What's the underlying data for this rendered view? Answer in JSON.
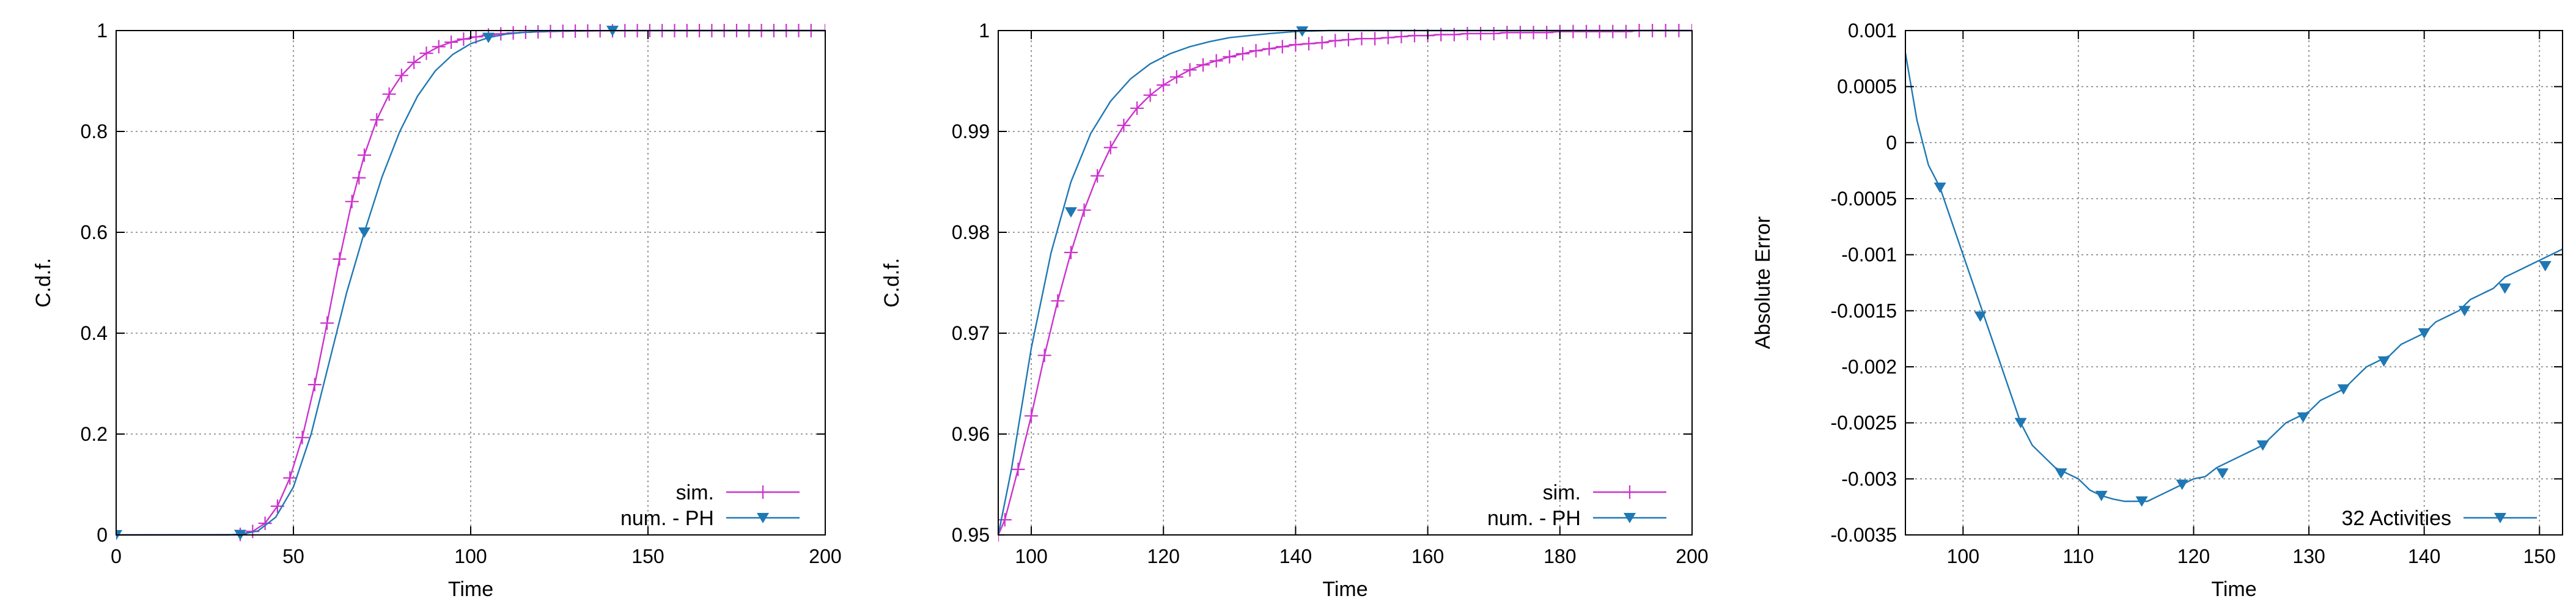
{
  "chart_data": [
    {
      "type": "line",
      "title": "",
      "xlabel": "Time",
      "ylabel": "C.d.f.",
      "xlim": [
        0,
        200
      ],
      "ylim": [
        0,
        1
      ],
      "x_ticks": [
        0,
        50,
        100,
        150,
        200
      ],
      "y_ticks": [
        0,
        0.2,
        0.4,
        0.6,
        0.8,
        1
      ],
      "x_tick_labels": [
        "0",
        "50",
        "100",
        "150",
        "200"
      ],
      "y_tick_labels": [
        "0",
        "0.2",
        "0.4",
        "0.6",
        "0.8",
        "1"
      ],
      "grid": true,
      "legend_position": "bottom-right",
      "series": [
        {
          "name": "sim.",
          "color": "#cc33cc",
          "marker": "plus",
          "x": [
            0,
            3.5,
            7,
            10.5,
            14,
            17.5,
            21,
            24.5,
            28,
            31.5,
            35,
            38.5,
            42,
            45.5,
            49,
            52.5,
            56,
            59.5,
            63,
            66.5,
            70,
            73.5,
            77,
            80.5,
            84,
            87.5,
            91,
            94.5,
            98,
            101.5,
            105,
            108.5,
            112,
            115.5,
            119,
            122.5,
            126,
            129.5,
            133,
            136.5,
            140,
            143.5,
            147,
            150.5,
            154,
            157.5,
            161,
            164.5,
            168,
            171.5,
            175,
            178.5,
            182,
            185.5,
            189,
            192.5,
            196,
            200
          ],
          "y": [
            0,
            0,
            0,
            0,
            0,
            0,
            0,
            0,
            0,
            0,
            0.001,
            0.007,
            0.023,
            0.057,
            0.113,
            0.193,
            0.298,
            0.42,
            0.547,
            0.661,
            0.753,
            0.823,
            0.874,
            0.911,
            0.937,
            0.955,
            0.968,
            0.977,
            0.983,
            0.9875,
            0.991,
            0.9935,
            0.9953,
            0.9966,
            0.9975,
            0.9982,
            0.9987,
            0.999,
            0.9993,
            0.9995,
            0.9996,
            0.9997,
            0.9998,
            0.9998,
            0.9999,
            0.9999,
            0.9999,
            1,
            1,
            1,
            1,
            1,
            1,
            1,
            1,
            1,
            1,
            1
          ],
          "marker_x": [
            35,
            38.5,
            42,
            45.5,
            49,
            52.5,
            56,
            59.5,
            63,
            66.5,
            68.5,
            70,
            73.5,
            77,
            80.5,
            84,
            87.5,
            91,
            94.5,
            98,
            101.5,
            105,
            108.5,
            112,
            115.5,
            119,
            122.5,
            126,
            129.5,
            133,
            136.5,
            140,
            143.5,
            147,
            150.5,
            154,
            157.5,
            161,
            164.5,
            168,
            171.5,
            175,
            178.5,
            182,
            185.5,
            189,
            192.5,
            196,
            200
          ],
          "marker_y": [
            0.001,
            0.007,
            0.023,
            0.057,
            0.113,
            0.193,
            0.298,
            0.42,
            0.547,
            0.661,
            0.708,
            0.753,
            0.823,
            0.874,
            0.911,
            0.937,
            0.955,
            0.968,
            0.977,
            0.983,
            0.9875,
            0.991,
            0.9935,
            0.9953,
            0.9966,
            0.9975,
            0.9982,
            0.9987,
            0.999,
            0.9993,
            0.9995,
            0.9996,
            0.9997,
            0.9998,
            0.9998,
            0.9999,
            0.9999,
            0.9999,
            1,
            1,
            1,
            1,
            1,
            1,
            1,
            1,
            1,
            1,
            1
          ]
        },
        {
          "name": "num. - PH",
          "color": "#1f78b4",
          "marker": "triangle-down",
          "x": [
            0,
            35,
            40,
            45,
            50,
            55,
            60,
            65,
            70,
            75,
            80,
            85,
            90,
            95,
            100,
            105,
            110,
            115,
            120,
            125,
            130,
            135,
            140,
            150,
            160,
            170,
            180,
            190,
            200
          ],
          "y": [
            0,
            0.0005,
            0.008,
            0.035,
            0.095,
            0.2,
            0.34,
            0.48,
            0.6,
            0.71,
            0.8,
            0.87,
            0.92,
            0.953,
            0.974,
            0.986,
            0.993,
            0.9965,
            0.9983,
            0.9992,
            0.9996,
            0.9998,
            0.9999,
            1,
            1,
            1,
            1,
            1,
            1
          ],
          "marker_x": [
            0,
            35,
            70,
            105,
            140
          ],
          "marker_y": [
            0,
            0.0005,
            0.6,
            0.986,
            0.9999
          ]
        }
      ]
    },
    {
      "type": "line",
      "title": "",
      "xlabel": "Time",
      "ylabel": "C.d.f.",
      "xlim": [
        95,
        200
      ],
      "ylim": [
        0.95,
        1
      ],
      "x_ticks": [
        100,
        120,
        140,
        160,
        180,
        200
      ],
      "y_ticks": [
        0.95,
        0.96,
        0.97,
        0.98,
        0.99,
        1
      ],
      "x_tick_labels": [
        "100",
        "120",
        "140",
        "160",
        "180",
        "200"
      ],
      "y_tick_labels": [
        "0.95",
        "0.96",
        "0.97",
        "0.98",
        "0.99",
        "1"
      ],
      "grid": true,
      "legend_position": "bottom-right",
      "series": [
        {
          "name": "sim.",
          "color": "#cc33cc",
          "marker": "plus",
          "x": [
            95,
            96,
            98,
            100,
            102,
            104,
            106,
            108,
            110,
            112,
            114,
            116,
            118,
            120,
            122,
            124,
            126,
            128,
            130,
            132,
            134,
            136,
            138,
            140,
            142,
            144,
            146,
            148,
            150,
            152,
            154,
            156,
            158,
            160,
            162,
            164,
            166,
            168,
            170,
            172,
            174,
            176,
            178,
            180,
            182,
            184,
            186,
            188,
            190,
            192,
            194,
            196,
            198,
            200
          ],
          "y": [
            0.95,
            0.9515,
            0.9565,
            0.9618,
            0.9678,
            0.9732,
            0.978,
            0.9822,
            0.9856,
            0.9884,
            0.9906,
            0.9923,
            0.9936,
            0.9946,
            0.9954,
            0.9961,
            0.9966,
            0.997,
            0.9974,
            0.9977,
            0.998,
            0.9982,
            0.9984,
            0.9986,
            0.9987,
            0.9988,
            0.999,
            0.9991,
            0.9992,
            0.9992,
            0.9993,
            0.9994,
            0.9995,
            0.9995,
            0.9996,
            0.9996,
            0.9997,
            0.9997,
            0.9997,
            0.9998,
            0.9998,
            0.9998,
            0.9998,
            0.9999,
            0.9999,
            0.9999,
            0.9999,
            0.9999,
            0.9999,
            1,
            1,
            1,
            1,
            1
          ]
        },
        {
          "name": "num. - PH",
          "color": "#1f78b4",
          "marker": "triangle-down",
          "x": [
            95,
            97,
            100,
            103,
            106,
            109,
            112,
            115,
            118,
            121,
            124,
            127,
            130,
            133,
            136,
            140,
            141,
            145,
            150,
            160,
            170,
            180,
            190,
            200
          ],
          "y": [
            0.95,
            0.9565,
            0.9685,
            0.978,
            0.985,
            0.9898,
            0.993,
            0.9952,
            0.9967,
            0.9977,
            0.9984,
            0.9989,
            0.9993,
            0.9995,
            0.9997,
            0.9999,
            0.99993,
            1,
            1,
            1,
            1,
            1,
            1,
            1
          ],
          "marker_x": [
            106,
            141
          ],
          "marker_y": [
            0.982,
            0.99993
          ]
        }
      ]
    },
    {
      "type": "line",
      "title": "",
      "xlabel": "Time",
      "ylabel": "Absolute Error",
      "xlim": [
        95,
        152
      ],
      "ylim": [
        -0.0035,
        0.001
      ],
      "x_ticks": [
        100,
        110,
        120,
        130,
        140,
        150
      ],
      "y_ticks": [
        -0.0035,
        -0.003,
        -0.0025,
        -0.002,
        -0.0015,
        -0.001,
        -0.0005,
        0,
        0.0005,
        0.001
      ],
      "x_tick_labels": [
        "100",
        "110",
        "120",
        "130",
        "140",
        "150"
      ],
      "y_tick_labels": [
        "-0.0035",
        "-0.003",
        "-0.0025",
        "-0.002",
        "-0.0015",
        "-0.001",
        "-0.0005",
        "0",
        "0.0005",
        "0.001"
      ],
      "grid": true,
      "legend_position": "bottom-right",
      "series": [
        {
          "name": "32 Activities",
          "color": "#1f78b4",
          "marker": "triangle-down",
          "x": [
            95,
            96,
            97,
            98,
            99,
            100,
            101,
            102,
            103,
            104,
            105,
            106,
            107,
            108,
            109,
            110,
            111,
            112,
            113,
            114,
            115,
            116,
            117,
            118,
            119,
            120,
            121,
            122,
            123,
            124,
            125,
            126,
            127,
            128,
            129,
            130,
            131,
            132,
            133,
            134,
            135,
            136,
            137,
            138,
            139,
            140,
            141,
            142,
            143,
            144,
            145,
            146,
            147,
            148,
            149,
            150,
            151,
            152
          ],
          "y": [
            0.0008,
            0.0002,
            -0.0002,
            -0.0004,
            -0.0007,
            -0.001,
            -0.0013,
            -0.0016,
            -0.0019,
            -0.0022,
            -0.0025,
            -0.0027,
            -0.0028,
            -0.0029,
            -0.00295,
            -0.003,
            -0.0031,
            -0.00315,
            -0.00318,
            -0.0032,
            -0.0032,
            -0.0032,
            -0.00315,
            -0.0031,
            -0.00305,
            -0.003,
            -0.00298,
            -0.0029,
            -0.00285,
            -0.0028,
            -0.00275,
            -0.0027,
            -0.0026,
            -0.0025,
            -0.00245,
            -0.0024,
            -0.0023,
            -0.00225,
            -0.0022,
            -0.0021,
            -0.002,
            -0.00195,
            -0.0019,
            -0.0018,
            -0.00175,
            -0.0017,
            -0.0016,
            -0.00155,
            -0.0015,
            -0.0014,
            -0.00135,
            -0.0013,
            -0.0012,
            -0.00115,
            -0.0011,
            -0.00105,
            -0.001,
            -0.00095
          ],
          "marker_x": [
            98,
            101.5,
            105,
            108.5,
            112,
            115.5,
            119,
            122.5,
            126,
            129.5,
            133,
            136.5,
            140,
            143.5,
            147,
            150.5
          ],
          "marker_y": [
            -0.0004,
            -0.00155,
            -0.0025,
            -0.00295,
            -0.00315,
            -0.0032,
            -0.00305,
            -0.00295,
            -0.0027,
            -0.00245,
            -0.0022,
            -0.00195,
            -0.0017,
            -0.0015,
            -0.0013,
            -0.0011
          ]
        }
      ]
    }
  ]
}
